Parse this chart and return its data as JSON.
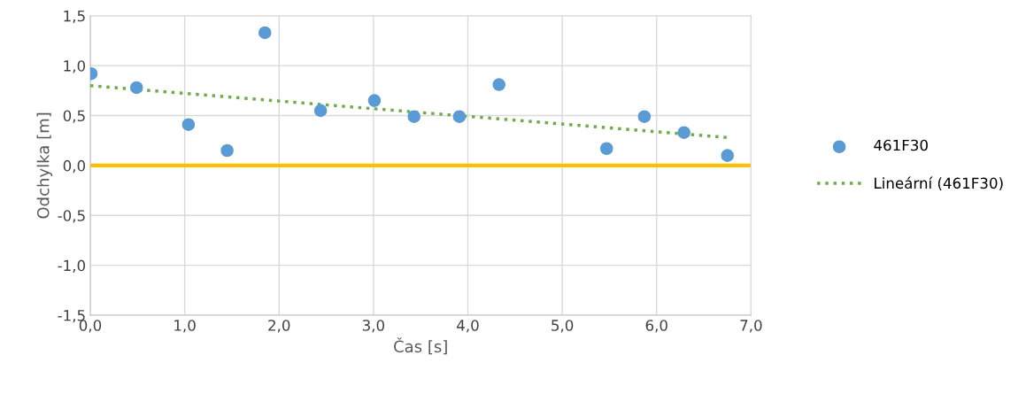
{
  "chart_data": {
    "type": "scatter",
    "xlabel": "Čas [s]",
    "ylabel": "Odchylka [m]",
    "xlim": [
      0,
      7
    ],
    "xticks": [
      {
        "value": 0,
        "label": "0,0"
      },
      {
        "value": 1,
        "label": "1,0"
      },
      {
        "value": 2,
        "label": "2,0"
      },
      {
        "value": 3,
        "label": "3,0"
      },
      {
        "value": 4,
        "label": "4,0"
      },
      {
        "value": 5,
        "label": "5,0"
      },
      {
        "value": 6,
        "label": "6,0"
      },
      {
        "value": 7,
        "label": "7,0"
      }
    ],
    "ylim": [
      -1.5,
      1.5
    ],
    "yticks": [
      {
        "value": -1.5,
        "label": "-1,5"
      },
      {
        "value": -1.0,
        "label": "-1,0"
      },
      {
        "value": -0.5,
        "label": "-0,5"
      },
      {
        "value": 0,
        "label": "0,0"
      },
      {
        "value": 0.5,
        "label": "0,5"
      },
      {
        "value": 1.0,
        "label": "1,0"
      },
      {
        "value": 1.5,
        "label": "1,5"
      }
    ],
    "grid": true,
    "legend": "right",
    "ref_lines": [
      {
        "axis": "y",
        "value": 0,
        "label": null,
        "color": "#ffc000"
      }
    ],
    "series": [
      {
        "name": "461F30",
        "color": "#5b9bd5",
        "marker": "circle",
        "x": [
          0.01,
          0.49,
          1.04,
          1.45,
          1.85,
          2.44,
          3.01,
          3.43,
          3.91,
          4.33,
          5.47,
          5.87,
          6.29,
          6.75
        ],
        "values": [
          0.92,
          0.78,
          0.41,
          0.15,
          1.33,
          0.55,
          0.65,
          0.49,
          0.49,
          0.81,
          0.17,
          0.49,
          0.33,
          0.1
        ]
      },
      {
        "name": "Lineární (461F30)",
        "type": "line",
        "color": "#70ad47",
        "line_style": "dotted",
        "marker": "none",
        "x": [
          0,
          6.75
        ],
        "values": [
          0.8,
          0.28
        ]
      }
    ]
  }
}
